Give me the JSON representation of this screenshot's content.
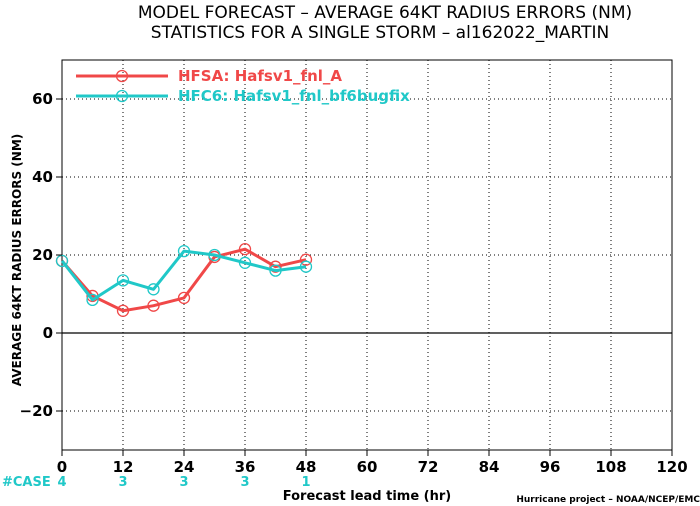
{
  "chart_data": {
    "type": "line",
    "title_line1": "MODEL FORECAST – AVERAGE 64KT RADIUS ERRORS (NM)",
    "title_line2": "STATISTICS FOR A SINGLE STORM – al162022_MARTIN",
    "ylabel": "AVERAGE 64KT RADIUS ERRORS (NM)",
    "xlabel": "Forecast lead time (hr)",
    "credit": "Hurricane project – NOAA/NCEP/EMC",
    "xlim": [
      0,
      120
    ],
    "ylim": [
      -30,
      70
    ],
    "x_ticks": [
      0,
      12,
      24,
      36,
      48,
      60,
      72,
      84,
      96,
      108,
      120
    ],
    "x_tick_labels": [
      "0",
      "12",
      "24",
      "36",
      "48",
      "60",
      "72",
      "84",
      "96",
      "108",
      "120"
    ],
    "y_ticks": [
      -20,
      0,
      20,
      40,
      60
    ],
    "y_tick_labels": [
      "−20",
      "0",
      "20",
      "40",
      "60"
    ],
    "zero_line": true,
    "grid": true,
    "legend_position": "top-left",
    "series": [
      {
        "name": "HFSA: Hafsv1_fnl_A",
        "color": "#f04848",
        "x": [
          0,
          6,
          12,
          18,
          24,
          30,
          36,
          42,
          48
        ],
        "y": [
          18.5,
          9.5,
          5.7,
          7,
          9,
          19.5,
          21.5,
          17,
          18.8
        ]
      },
      {
        "name": "HFC6: Hafsv1_fnl_bf6bugfix",
        "color": "#20c8c8",
        "x": [
          0,
          6,
          12,
          18,
          24,
          30,
          36,
          42,
          48
        ],
        "y": [
          18.5,
          8.5,
          13.5,
          11.2,
          21,
          20,
          18,
          16,
          17
        ]
      }
    ],
    "case_label": "#CASE",
    "case_color": "#20c8c8",
    "cases": [
      {
        "x": 0,
        "n": "4"
      },
      {
        "x": 12,
        "n": "3"
      },
      {
        "x": 24,
        "n": "3"
      },
      {
        "x": 36,
        "n": "3"
      },
      {
        "x": 48,
        "n": "1"
      }
    ]
  }
}
